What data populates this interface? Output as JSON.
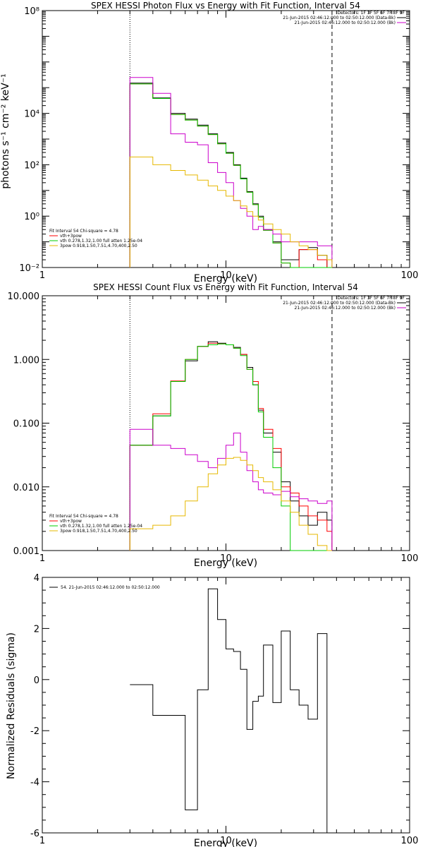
{
  "chart_data": [
    {
      "type": "line",
      "title": "SPEX HESSI Photon Flux vs Energy with Fit Function, Interval 54",
      "xlabel": "Energy (keV)",
      "ylabel": "photons s⁻¹ cm⁻² keV⁻¹",
      "xlim": [
        1,
        100
      ],
      "ylim": [
        0.01,
        100000000
      ],
      "xscale": "log",
      "yscale": "log",
      "x_ticks": [
        1,
        10,
        100
      ],
      "x_tick_labels": [
        "1",
        "10",
        "100"
      ],
      "y_ticks": [
        0.01,
        1,
        100,
        10000,
        100000000
      ],
      "y_tick_labels": [
        "10⁻²",
        "10⁰",
        "10²",
        "10⁴",
        "10⁸"
      ],
      "vlines": [
        {
          "x": 3.0,
          "style": "dotted"
        },
        {
          "x": 37.8,
          "style": "dashed"
        }
      ],
      "legend_top": {
        "placement": "top-right",
        "lines": [
          {
            "text": "Detectors: 1F 3F 5F 6F 7F 8F 9F",
            "color": ""
          },
          {
            "text": "21-Jun-2015 02:46:12.000 to 02:50:12.000 (Data-Bk)",
            "color": "#000000"
          },
          {
            "text": "21-Jun-2015 02:46:12.000 to 02:50:12.000 (Bk)",
            "color": "#cc00cc"
          }
        ]
      },
      "legend_bottom": {
        "placement": "bottom-left",
        "lines": [
          {
            "text": "Fit Interval 54    Chi-square = 4.78",
            "color": ""
          },
          {
            "text": "vth+3pow",
            "color": "#ff0000"
          },
          {
            "text": "vth 0.278,1.32,1.00  full atten 1.25e-04",
            "color": "#00cc00"
          },
          {
            "text": "3pow 0.918,1.50,7.51,4.70,400,2.50",
            "color": "#e6b800"
          }
        ]
      },
      "edges": [
        3.0,
        4.0,
        5.0,
        6.0,
        7.0,
        8.0,
        9.0,
        10.0,
        11.0,
        12.0,
        13.0,
        14.0,
        15.0,
        16.0,
        18.0,
        20.0,
        22.4,
        25.0,
        28.0,
        31.5,
        35.5,
        37.8
      ],
      "series": [
        {
          "name": "",
          "color": "#000000",
          "values": [
            150000,
            40000,
            10000,
            6000,
            3500,
            1600,
            700,
            300,
            100,
            30,
            9,
            3,
            1,
            0.3,
            0.1,
            0.02,
            0.02,
            0.05,
            0.06,
            0.03,
            0.01
          ]
        },
        {
          "name": "",
          "color": "#ff0000",
          "values": [
            140000,
            38000,
            9000,
            5500,
            3200,
            1500,
            650,
            280,
            95,
            28,
            8.5,
            2.8,
            0.9,
            0.28,
            0.09,
            0.015,
            0.01,
            0.05,
            0.05,
            0.02,
            0.01
          ]
        },
        {
          "name": "",
          "color": "#00cc00",
          "values": [
            140000,
            38000,
            9000,
            5500,
            3200,
            1500,
            650,
            280,
            95,
            28,
            8.5,
            2.8,
            0.9,
            0.28,
            0.09,
            0.015,
            0.01,
            0.01,
            0.01,
            0.01,
            0.01
          ]
        },
        {
          "name": "",
          "color": "#cc00cc",
          "values": [
            250000,
            60000,
            1600,
            750,
            600,
            120,
            50,
            20,
            4,
            2,
            1,
            0.3,
            0.4,
            0.3,
            0.2,
            0.1,
            0.1,
            0.1,
            0.1,
            0.07,
            0.07
          ]
        },
        {
          "name": "",
          "color": "#e6b800",
          "values": [
            200,
            100,
            60,
            40,
            25,
            15,
            10,
            6,
            4,
            2.5,
            1.5,
            1,
            0.7,
            0.5,
            0.3,
            0.2,
            0.1,
            0.07,
            0.05,
            0.03,
            0.02
          ]
        }
      ]
    },
    {
      "type": "line",
      "title": "SPEX HESSI Count Flux vs Energy with Fit Function, Interval 54",
      "xlabel": "Energy (keV)",
      "ylabel": "",
      "xlim": [
        1,
        100
      ],
      "ylim": [
        0.001,
        10
      ],
      "xscale": "log",
      "yscale": "log",
      "x_ticks": [
        1,
        10,
        100
      ],
      "x_tick_labels": [
        "1",
        "10",
        "100"
      ],
      "y_ticks": [
        0.001,
        0.01,
        0.1,
        1,
        10
      ],
      "y_tick_labels": [
        "0.001",
        "0.010",
        "0.100",
        "1.000",
        "10.000"
      ],
      "vlines": [
        {
          "x": 3.0,
          "style": "dotted"
        },
        {
          "x": 37.8,
          "style": "dashed"
        }
      ],
      "legend_top": {
        "placement": "top-right",
        "lines": [
          {
            "text": "Detectors: 1F 3F 5F 6F 7F 8F 9F",
            "color": ""
          },
          {
            "text": "21-Jun-2015 02:46:12.000 to 02:50:12.000 (Data-Bk)",
            "color": "#000000"
          },
          {
            "text": "21-Jun-2015 02:46:12.000 to 02:50:12.000 (Bk)",
            "color": "#cc00cc"
          }
        ]
      },
      "legend_bottom": {
        "placement": "bottom-left",
        "lines": [
          {
            "text": "Fit Interval 54    Chi-square = 4.78",
            "color": ""
          },
          {
            "text": "vth+3pow",
            "color": "#ff0000"
          },
          {
            "text": "vth 0.278,1.32,1.00  full atten 1.25e-04",
            "color": "#00cc00"
          },
          {
            "text": "3pow 0.918,1.50,7.51,4.70,400,2.50",
            "color": "#e6b800"
          }
        ]
      },
      "edges": [
        3.0,
        4.0,
        5.0,
        6.0,
        7.0,
        8.0,
        9.0,
        10.0,
        11.0,
        12.0,
        13.0,
        14.0,
        15.0,
        16.0,
        18.0,
        20.0,
        22.4,
        25.0,
        28.0,
        31.5,
        35.5,
        37.8
      ],
      "series": [
        {
          "name": "",
          "color": "#000000",
          "values": [
            0.045,
            0.13,
            0.45,
            0.95,
            1.6,
            1.9,
            1.8,
            1.7,
            1.55,
            1.2,
            0.75,
            0.4,
            0.16,
            0.07,
            0.035,
            0.012,
            0.006,
            0.0035,
            0.0025,
            0.004,
            0.003
          ]
        },
        {
          "name": "",
          "color": "#ff0000",
          "values": [
            0.045,
            0.14,
            0.46,
            1.0,
            1.6,
            1.8,
            1.75,
            1.7,
            1.5,
            1.2,
            0.7,
            0.45,
            0.17,
            0.08,
            0.04,
            0.01,
            0.008,
            0.005,
            0.0035,
            0.003,
            0.002
          ]
        },
        {
          "name": "",
          "color": "#00cc00",
          "values": [
            0.045,
            0.13,
            0.45,
            1.0,
            1.6,
            1.7,
            1.75,
            1.7,
            1.5,
            1.15,
            0.7,
            0.4,
            0.15,
            0.06,
            0.02,
            0.005,
            0.001,
            0.001,
            0.001,
            0.001,
            0.001
          ]
        },
        {
          "name": "",
          "color": "#cc00cc",
          "values": [
            0.08,
            0.045,
            0.04,
            0.032,
            0.025,
            0.02,
            0.028,
            0.045,
            0.07,
            0.035,
            0.018,
            0.012,
            0.009,
            0.008,
            0.0075,
            0.0085,
            0.007,
            0.0065,
            0.006,
            0.0055,
            0.006
          ]
        },
        {
          "name": "",
          "color": "#e6b800",
          "values": [
            0.0022,
            0.0025,
            0.0035,
            0.006,
            0.01,
            0.016,
            0.022,
            0.028,
            0.029,
            0.026,
            0.022,
            0.018,
            0.014,
            0.012,
            0.009,
            0.006,
            0.004,
            0.0025,
            0.0018,
            0.0012,
            0.001
          ]
        }
      ]
    },
    {
      "type": "line",
      "title": "",
      "xlabel": "Energy (keV)",
      "ylabel": "Normalized Residuals (sigma)",
      "xlim": [
        1,
        100
      ],
      "ylim": [
        -6,
        4
      ],
      "xscale": "log",
      "yscale": "linear",
      "x_ticks": [
        1,
        10,
        100
      ],
      "x_tick_labels": [
        "1",
        "10",
        "100"
      ],
      "y_ticks": [
        -6,
        -4,
        -2,
        0,
        2,
        4
      ],
      "y_tick_labels": [
        "-6",
        "-4",
        "-2",
        "0",
        "2",
        "4"
      ],
      "vlines": [],
      "legend_top": {
        "placement": "top-left",
        "lines": [
          {
            "text": "54. 21-Jun-2015 02:46:12.000 to 02:50:12.000",
            "color": "#000000"
          }
        ]
      },
      "legend_bottom": {
        "placement": "",
        "lines": []
      },
      "edges": [
        3.0,
        4.0,
        5.0,
        6.0,
        7.0,
        8.0,
        9.0,
        10.0,
        11.0,
        12.0,
        13.0,
        14.0,
        15.0,
        16.0,
        18.0,
        20.0,
        22.4,
        25.0,
        28.0,
        31.5,
        35.5,
        37.8
      ],
      "series": [
        {
          "name": "",
          "color": "#000000",
          "values": [
            -0.2,
            -1.4,
            -1.4,
            -5.1,
            -0.4,
            3.55,
            2.35,
            1.2,
            1.1,
            0.4,
            -1.95,
            -0.85,
            -0.65,
            1.35,
            -0.9,
            1.9,
            -0.4,
            -1.0,
            -1.55,
            1.8,
            -6.0
          ]
        }
      ]
    }
  ]
}
